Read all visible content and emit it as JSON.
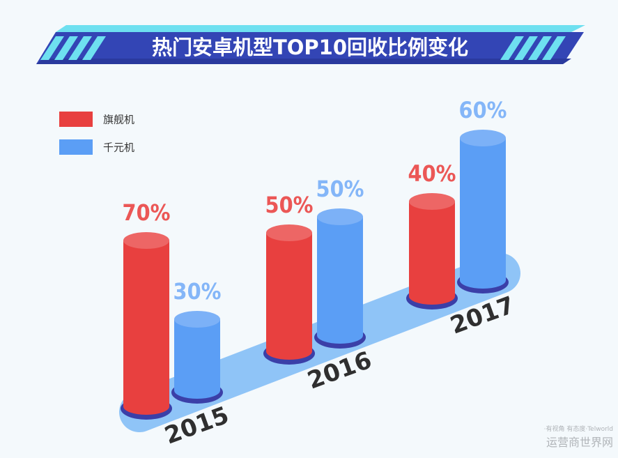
{
  "chart_data": {
    "type": "cylinder-bar",
    "title": "热门安卓机型TOP10回收比例变化",
    "categories": [
      "2015",
      "2016",
      "2017"
    ],
    "series": [
      {
        "name": "旗舰机",
        "color": "#e8403f",
        "values": [
          70,
          50,
          40
        ],
        "value_labels": [
          "70%",
          "50%",
          "40%"
        ]
      },
      {
        "name": "千元机",
        "color": "#5b9ef5",
        "values": [
          30,
          50,
          60
        ],
        "value_labels": [
          "30%",
          "50%",
          "60%"
        ]
      }
    ]
  },
  "watermark": {
    "logo": "运营商世界网",
    "tagline": "·有视角 有态度·Telworld"
  }
}
